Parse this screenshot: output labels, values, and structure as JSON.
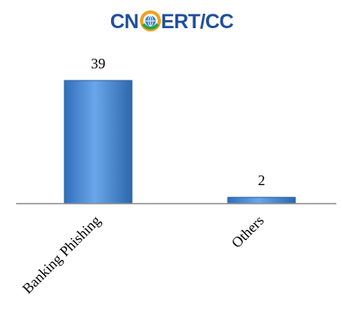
{
  "logo": {
    "text_left": "CN",
    "text_right": "ERT/CC",
    "text_color": "#1f4f9c",
    "ring_colors": [
      "#f0a01e",
      "#2aa34a"
    ],
    "globe_color": "#2f7fcf"
  },
  "chart_data": {
    "type": "bar",
    "categories": [
      "Banking Phishing",
      "Others"
    ],
    "values": [
      39,
      2
    ],
    "data_labels": [
      "39",
      "2"
    ],
    "title": "",
    "xlabel": "",
    "ylabel": "",
    "ylim": [
      0,
      39
    ],
    "grid": false,
    "legend": "none",
    "bar_color": "#3d7fcf",
    "bar_edge_color": "#2a5f9e",
    "axis_color": "#8c8c8c"
  }
}
